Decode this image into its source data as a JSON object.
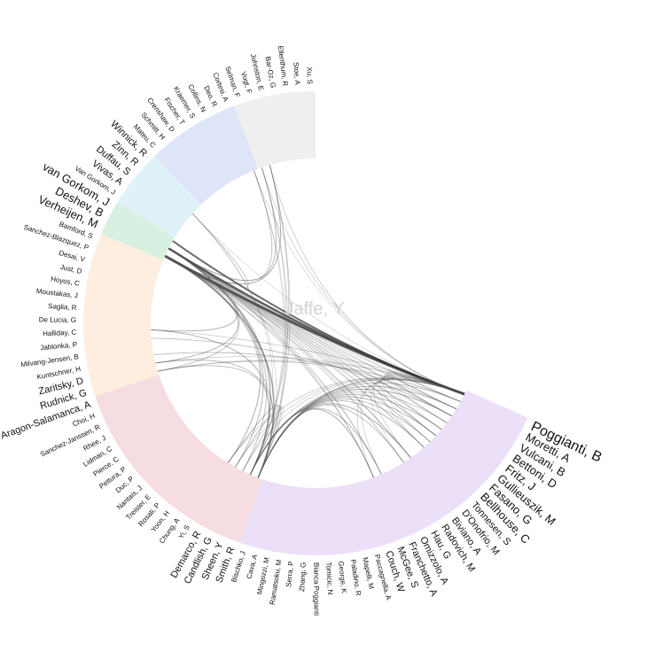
{
  "center_label": "Jaffe, Y",
  "sectors": [
    {
      "color": "#efefef",
      "names": [
        "Xu, S",
        "Stoe, A",
        "Ellenthum, R",
        "Bar-Oz, G",
        "Johnston, E",
        "Vogt, F",
        "Selman, F"
      ]
    },
    {
      "color": "#dfe5f8",
      "names": [
        "Cortesi, A",
        "Deo, R",
        "Collins, N",
        "Kraemer, S",
        "Fischer, T",
        "Crenshaw, D",
        "Schmitt, H",
        "Mateu, C"
      ]
    },
    {
      "color": "#dff2f8",
      "names": [
        "Winnick, R",
        "Zinn, R",
        "Duffau, S",
        "Vivas, A",
        "Van Gorkom, J"
      ]
    },
    {
      "color": "#d8f0e2",
      "names": [
        "van Gorkom, J",
        "Deshev, B",
        "Verheijen, M"
      ]
    },
    {
      "color": "#fdeee0",
      "names": [
        "Bamford, S",
        "Sanchez-Blazquez, P",
        "Desai, V",
        "Just, D",
        "Hoyos, C",
        "Moustakas, J",
        "Saglia, R",
        "De Lucia, G",
        "Halliday, C",
        "Jablonka, P",
        "Milvang-Jensen, B",
        "Kuntschner, H",
        "Zaritsky, D",
        "Rudnick, G"
      ]
    },
    {
      "color": "#f6dde1",
      "names": [
        "Aragon-Salamanca, A",
        "Choi, H",
        "Sanchez-Janssen, R",
        "Rhee, J",
        "Lidman, C",
        "Pierce, C",
        "Pettura, P",
        "Duc, P",
        "Nantais, J",
        "Treister, E",
        "Rosati, P",
        "Yoon, H",
        "Chung, A",
        "Yi, S",
        "Demarco, R",
        "Candlish, G",
        "Sheen, Y",
        "Smith, R"
      ]
    },
    {
      "color": "#ecdff8",
      "names": [
        "Bischko, J",
        "Cava, A",
        "Mingozzi, M",
        "Ramatsoku, M",
        "Serra, P",
        "Zhang, G",
        "Bianca Poggianti",
        "Tomicic, N",
        "George, K",
        "Paladino, R",
        "Mapelli, M",
        "Paccagnella, A",
        "Couch, W",
        "McGee, S",
        "Franchetto, A",
        "Omizzolo, A",
        "Hau, G",
        "Radovich, M",
        "Biviano, A",
        "D'Onofrio, M",
        "Tonnesen, S",
        "Bellhouse, C",
        "Fasano, G",
        "Gullieuszik, M",
        "Fritz, J",
        "Bettoni, D",
        "Vulcani, B",
        "Moretti, A",
        "Poggianti, B"
      ]
    }
  ],
  "colors": {
    "chord": "#555555",
    "chord_strong": "#3a3a3a",
    "label": "#111111"
  }
}
